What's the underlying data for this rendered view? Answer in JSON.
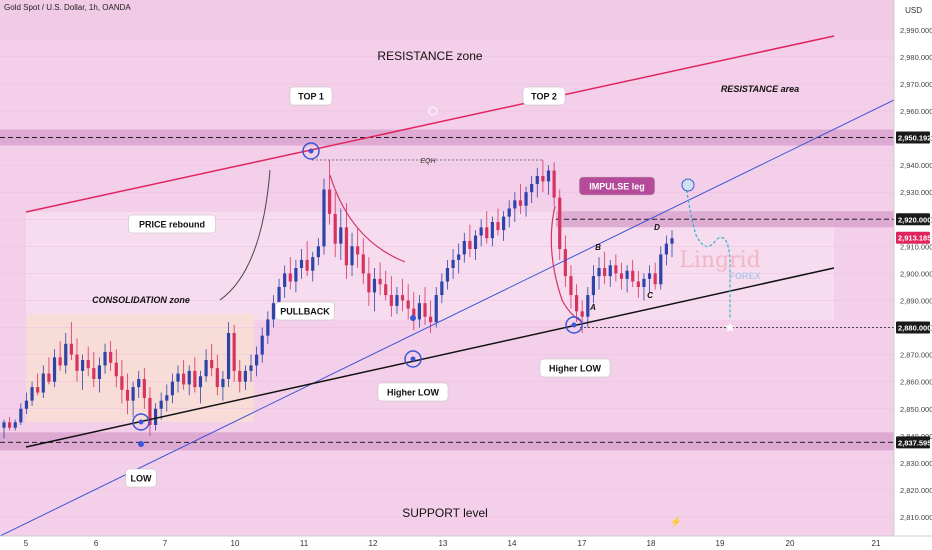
{
  "header": {
    "symbol": "Gold Spot / U.S. Dollar, 1h, OANDA",
    "currency": "USD"
  },
  "chart_data": {
    "type": "candlestick",
    "symbol": "Gold Spot / U.S. Dollar",
    "timeframe": "1h",
    "source": "OANDA",
    "ylim": [
      2803,
      3001
    ],
    "y_ticks": [
      2810,
      2820,
      2830,
      2840,
      2850,
      2860,
      2870,
      2880,
      2890,
      2900,
      2910,
      2920,
      2930,
      2940,
      2950,
      2960,
      2970,
      2980,
      2990
    ],
    "x_ticks": [
      "5",
      "6",
      "7",
      "10",
      "11",
      "12",
      "13",
      "14",
      "17",
      "18",
      "19",
      "20",
      "21"
    ],
    "price_markers": [
      {
        "value": "2,950.192",
        "color": "#1a1a1a"
      },
      {
        "value": "2,920.000",
        "color": "#1a1a1a"
      },
      {
        "value": "2,913.185",
        "color": "#e0245e"
      },
      {
        "value": "2,880.000",
        "color": "#1a1a1a"
      },
      {
        "value": "2,837.595",
        "color": "#1a1a1a"
      }
    ],
    "levels": {
      "resistance": 2950.192,
      "mid": 2920.0,
      "target": 2880.0,
      "support": 2837.595
    },
    "candles": [
      [
        2843,
        2846,
        2839,
        2845
      ],
      [
        2845,
        2847,
        2842,
        2843
      ],
      [
        2843,
        2846,
        2842,
        2845
      ],
      [
        2845,
        2852,
        2844,
        2850
      ],
      [
        2850,
        2856,
        2848,
        2853
      ],
      [
        2853,
        2860,
        2851,
        2858
      ],
      [
        2858,
        2863,
        2855,
        2856
      ],
      [
        2856,
        2866,
        2854,
        2863
      ],
      [
        2863,
        2869,
        2859,
        2860
      ],
      [
        2860,
        2872,
        2858,
        2869
      ],
      [
        2869,
        2875,
        2864,
        2866
      ],
      [
        2866,
        2878,
        2863,
        2874
      ],
      [
        2874,
        2882,
        2868,
        2870
      ],
      [
        2870,
        2876,
        2860,
        2864
      ],
      [
        2864,
        2870,
        2857,
        2868
      ],
      [
        2868,
        2873,
        2862,
        2865
      ],
      [
        2865,
        2871,
        2858,
        2861
      ],
      [
        2861,
        2869,
        2856,
        2866
      ],
      [
        2866,
        2874,
        2863,
        2871
      ],
      [
        2871,
        2875,
        2864,
        2867
      ],
      [
        2867,
        2872,
        2858,
        2862
      ],
      [
        2862,
        2868,
        2852,
        2857
      ],
      [
        2857,
        2863,
        2848,
        2853
      ],
      [
        2853,
        2860,
        2847,
        2858
      ],
      [
        2858,
        2864,
        2854,
        2861
      ],
      [
        2861,
        2865,
        2850,
        2854
      ],
      [
        2854,
        2858,
        2840,
        2844
      ],
      [
        2844,
        2852,
        2842,
        2850
      ],
      [
        2850,
        2856,
        2846,
        2853
      ],
      [
        2853,
        2859,
        2849,
        2855
      ],
      [
        2855,
        2863,
        2852,
        2860
      ],
      [
        2860,
        2866,
        2856,
        2863
      ],
      [
        2863,
        2868,
        2857,
        2859
      ],
      [
        2859,
        2866,
        2855,
        2864
      ],
      [
        2864,
        2869,
        2856,
        2858
      ],
      [
        2858,
        2864,
        2852,
        2862
      ],
      [
        2862,
        2872,
        2860,
        2868
      ],
      [
        2868,
        2874,
        2862,
        2865
      ],
      [
        2865,
        2870,
        2855,
        2858
      ],
      [
        2858,
        2864,
        2853,
        2861
      ],
      [
        2861,
        2882,
        2858,
        2878
      ],
      [
        2878,
        2881,
        2860,
        2864
      ],
      [
        2864,
        2868,
        2856,
        2860
      ],
      [
        2860,
        2866,
        2857,
        2864
      ],
      [
        2864,
        2870,
        2860,
        2866
      ],
      [
        2866,
        2873,
        2862,
        2870
      ],
      [
        2870,
        2880,
        2867,
        2877
      ],
      [
        2877,
        2886,
        2874,
        2883
      ],
      [
        2883,
        2892,
        2880,
        2889
      ],
      [
        2889,
        2898,
        2885,
        2895
      ],
      [
        2895,
        2903,
        2891,
        2900
      ],
      [
        2900,
        2906,
        2894,
        2897
      ],
      [
        2897,
        2905,
        2893,
        2902
      ],
      [
        2902,
        2909,
        2898,
        2905
      ],
      [
        2905,
        2912,
        2899,
        2901
      ],
      [
        2901,
        2908,
        2897,
        2906
      ],
      [
        2906,
        2913,
        2903,
        2910
      ],
      [
        2910,
        2935,
        2907,
        2931
      ],
      [
        2931,
        2942,
        2918,
        2922
      ],
      [
        2922,
        2930,
        2906,
        2911
      ],
      [
        2911,
        2924,
        2905,
        2917
      ],
      [
        2917,
        2926,
        2898,
        2903
      ],
      [
        2903,
        2915,
        2899,
        2910
      ],
      [
        2910,
        2917,
        2902,
        2907
      ],
      [
        2907,
        2913,
        2896,
        2900
      ],
      [
        2900,
        2906,
        2888,
        2893
      ],
      [
        2893,
        2902,
        2886,
        2898
      ],
      [
        2898,
        2904,
        2892,
        2896
      ],
      [
        2896,
        2901,
        2890,
        2892
      ],
      [
        2892,
        2899,
        2884,
        2888
      ],
      [
        2888,
        2895,
        2885,
        2892
      ],
      [
        2892,
        2898,
        2886,
        2890
      ],
      [
        2890,
        2896,
        2883,
        2887
      ],
      [
        2887,
        2893,
        2879,
        2883
      ],
      [
        2883,
        2892,
        2880,
        2889
      ],
      [
        2889,
        2895,
        2881,
        2884
      ],
      [
        2884,
        2890,
        2878,
        2882
      ],
      [
        2882,
        2895,
        2880,
        2892
      ],
      [
        2892,
        2900,
        2889,
        2897
      ],
      [
        2897,
        2905,
        2894,
        2902
      ],
      [
        2902,
        2909,
        2898,
        2905
      ],
      [
        2905,
        2911,
        2900,
        2907
      ],
      [
        2907,
        2915,
        2904,
        2912
      ],
      [
        2912,
        2918,
        2906,
        2909
      ],
      [
        2909,
        2916,
        2905,
        2914
      ],
      [
        2914,
        2920,
        2910,
        2917
      ],
      [
        2917,
        2923,
        2911,
        2913
      ],
      [
        2913,
        2921,
        2910,
        2919
      ],
      [
        2919,
        2924,
        2914,
        2916
      ],
      [
        2916,
        2923,
        2912,
        2921
      ],
      [
        2921,
        2927,
        2917,
        2924
      ],
      [
        2924,
        2930,
        2919,
        2927
      ],
      [
        2927,
        2933,
        2922,
        2925
      ],
      [
        2925,
        2932,
        2921,
        2930
      ],
      [
        2930,
        2936,
        2926,
        2933
      ],
      [
        2933,
        2939,
        2928,
        2936
      ],
      [
        2936,
        2942,
        2930,
        2934
      ],
      [
        2934,
        2940,
        2929,
        2938
      ],
      [
        2938,
        2941,
        2925,
        2928
      ],
      [
        2928,
        2931,
        2905,
        2909
      ],
      [
        2909,
        2914,
        2895,
        2899
      ],
      [
        2899,
        2903,
        2887,
        2892
      ],
      [
        2892,
        2896,
        2882,
        2886
      ],
      [
        2886,
        2890,
        2878,
        2884
      ],
      [
        2884,
        2895,
        2880,
        2892
      ],
      [
        2892,
        2903,
        2889,
        2899
      ],
      [
        2899,
        2906,
        2894,
        2902
      ],
      [
        2902,
        2908,
        2896,
        2899
      ],
      [
        2899,
        2905,
        2895,
        2903
      ],
      [
        2903,
        2907,
        2897,
        2900
      ],
      [
        2900,
        2904,
        2894,
        2898
      ],
      [
        2898,
        2903,
        2893,
        2901
      ],
      [
        2901,
        2905,
        2895,
        2897
      ],
      [
        2897,
        2901,
        2891,
        2895
      ],
      [
        2895,
        2900,
        2890,
        2898
      ],
      [
        2898,
        2903,
        2893,
        2900
      ],
      [
        2900,
        2904,
        2894,
        2896
      ],
      [
        2896,
        2910,
        2894,
        2907
      ],
      [
        2907,
        2914,
        2903,
        2911
      ],
      [
        2911,
        2916,
        2906,
        2913
      ]
    ],
    "annotations": [
      "RESISTANCE zone",
      "RESISTANCE area",
      "TOP 1",
      "TOP 2",
      "EQH",
      "IMPULSE leg",
      "PRICE rebound",
      "CONSOLIDATION zone",
      "PULLBACK",
      "Higher LOW",
      "Higher LOW",
      "LOW",
      "SUPPORT level",
      "A",
      "B",
      "C",
      "D"
    ],
    "watermark": {
      "name": "Lingrid",
      "sub": "FOREX"
    }
  }
}
